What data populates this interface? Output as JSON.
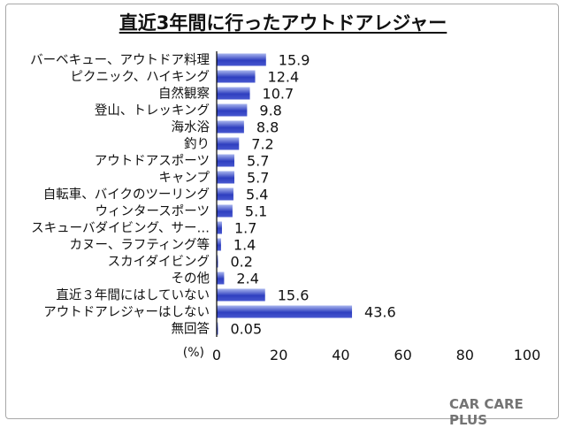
{
  "chart_data": {
    "type": "bar",
    "orientation": "horizontal",
    "title": "直近3年間に行ったアウトドアレジャー",
    "unit_label": "(%)",
    "categories": [
      "バーベキュー、アウトドア料理",
      "ピクニック、ハイキング",
      "自然観察",
      "登山、トレッキング",
      "海水浴",
      "釣り",
      "アウトドアスポーツ",
      "キャンプ",
      "自転車、バイクのツーリング",
      "ウィンタースポーツ",
      "スキューバダイビング、サー…",
      "カヌー、ラフティング等",
      "スカイダイビング",
      "その他",
      "直近３年間にはしていない",
      "アウトドアレジャーはしない",
      "無回答"
    ],
    "values": [
      15.9,
      12.4,
      10.7,
      9.8,
      8.8,
      7.2,
      5.7,
      5.7,
      5.4,
      5.1,
      1.7,
      1.4,
      0.2,
      2.4,
      15.6,
      43.6,
      0.05
    ],
    "value_labels": [
      "15.9",
      "12.4",
      "10.7",
      "9.8",
      "8.8",
      "7.2",
      "5.7",
      "5.7",
      "5.4",
      "5.1",
      "1.7",
      "1.4",
      "0.2",
      "2.4",
      "15.6",
      "43.6",
      "0.05"
    ],
    "xlim": [
      0,
      100
    ],
    "x_ticks": [
      "0",
      "20",
      "40",
      "60",
      "80",
      "100"
    ],
    "grid": false,
    "legend": "none",
    "bar_color_start": "#2f3fc0",
    "bar_color_end": "#a9b6ee"
  },
  "watermark": "CAR CARE PLUS"
}
